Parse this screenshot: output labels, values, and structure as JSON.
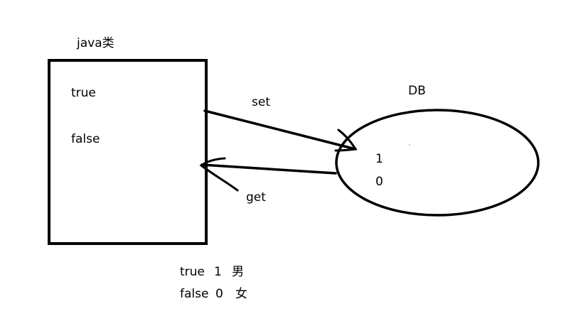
{
  "java_class": {
    "title": "java类",
    "true_label": "true",
    "false_label": "false"
  },
  "arrows": {
    "set_label": "set",
    "get_label": "get"
  },
  "db": {
    "title": "DB",
    "one_label": "1",
    "zero_label": "0"
  },
  "legend": {
    "rows": [
      {
        "bool": "true",
        "num": "1",
        "gender": "男"
      },
      {
        "bool": "false",
        "num": "0",
        "gender": "女"
      }
    ]
  }
}
